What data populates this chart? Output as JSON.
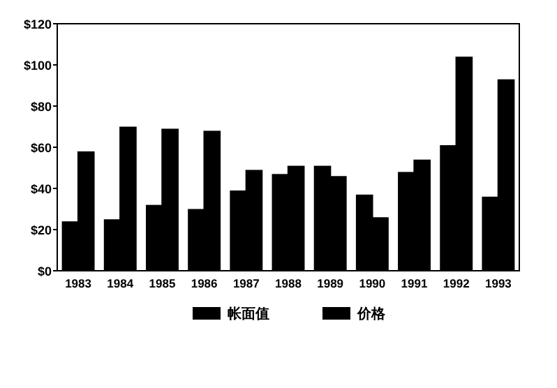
{
  "chart_data": {
    "type": "bar",
    "categories": [
      "1983",
      "1984",
      "1985",
      "1986",
      "1987",
      "1988",
      "1989",
      "1990",
      "1991",
      "1992",
      "1993"
    ],
    "series": [
      {
        "name": "帐面值",
        "color": "#000000",
        "values": [
          24,
          25,
          32,
          30,
          39,
          47,
          51,
          37,
          48,
          61,
          36
        ]
      },
      {
        "name": "价格",
        "color": "#000000",
        "values": [
          58,
          70,
          69,
          68,
          49,
          51,
          46,
          26,
          54,
          104,
          93
        ]
      }
    ],
    "ylim": [
      0,
      120
    ],
    "yticks": [
      {
        "value": 0,
        "label": "$0"
      },
      {
        "value": 20,
        "label": "$20"
      },
      {
        "value": 40,
        "label": "$40"
      },
      {
        "value": 60,
        "label": "$60"
      },
      {
        "value": 80,
        "label": "$80"
      },
      {
        "value": 100,
        "label": "$100"
      },
      {
        "value": 120,
        "label": "$120"
      }
    ],
    "grid": false,
    "legend": "bottom"
  }
}
